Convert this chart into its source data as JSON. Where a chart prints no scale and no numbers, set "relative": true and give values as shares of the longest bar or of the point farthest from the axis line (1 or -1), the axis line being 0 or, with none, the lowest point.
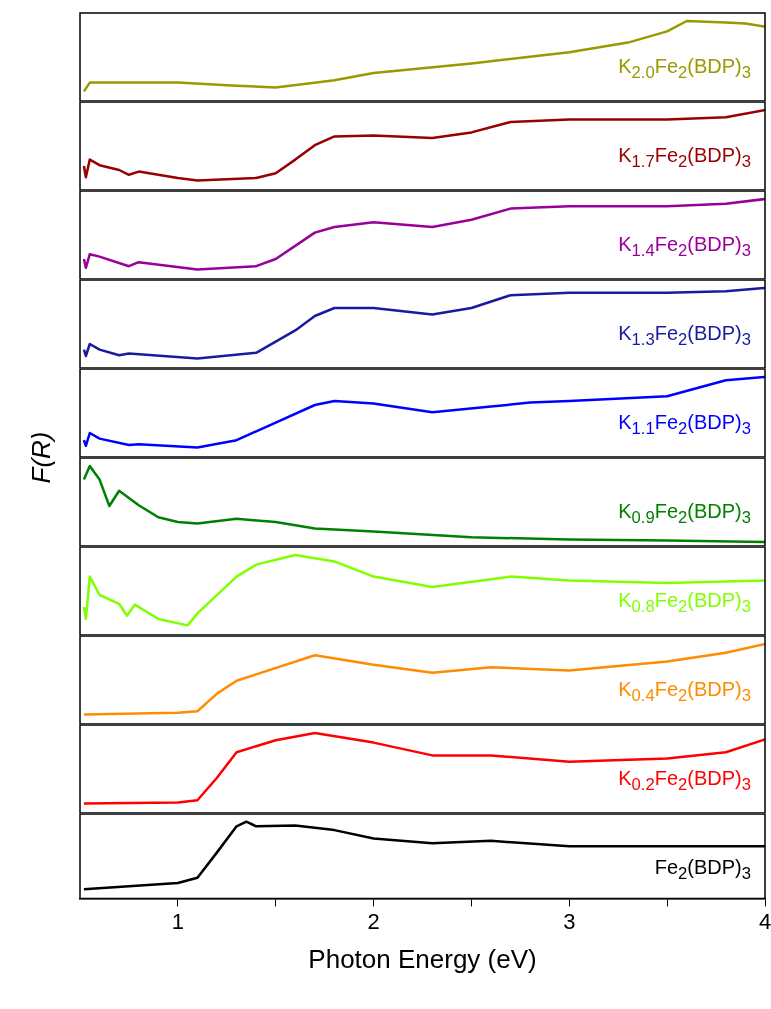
{
  "chart_data": [
    {
      "type": "line",
      "relative": true,
      "xlim": [
        0.5,
        4
      ],
      "tick_labels": false,
      "series": [
        {
          "name": "K$_{2.0}$Fe$_{2}$(BDP)$_{3}$",
          "color": "#999900",
          "x": [
            0.52,
            0.55,
            0.7,
            1.0,
            1.3,
            1.5,
            1.8,
            2.0,
            2.5,
            3.0,
            3.3,
            3.5,
            3.6,
            3.8,
            3.9,
            4.0
          ],
          "values": [
            0.12,
            0.23,
            0.23,
            0.23,
            0.19,
            0.17,
            0.26,
            0.35,
            0.47,
            0.61,
            0.73,
            0.87,
            1,
            0.98,
            0.97,
            0.93
          ]
        }
      ]
    },
    {
      "type": "line",
      "relative": true,
      "xlim": [
        0.5,
        4
      ],
      "tick_labels": false,
      "series": [
        {
          "name": "K$_{1.7}$Fe$_{2}$(BDP)$_{3}$",
          "color": "#990000",
          "x": [
            0.52,
            0.53,
            0.55,
            0.6,
            0.7,
            0.75,
            0.8,
            1.0,
            1.1,
            1.4,
            1.5,
            1.6,
            1.7,
            1.8,
            2.0,
            2.3,
            2.5,
            2.7,
            3.0,
            3.5,
            3.8,
            4.0
          ],
          "values": [
            0.3,
            0.16,
            0.38,
            0.31,
            0.25,
            0.19,
            0.23,
            0.15,
            0.12,
            0.15,
            0.21,
            0.38,
            0.56,
            0.67,
            0.68,
            0.65,
            0.72,
            0.85,
            0.88,
            0.88,
            0.91,
            1
          ]
        }
      ]
    },
    {
      "type": "line",
      "relative": true,
      "xlim": [
        0.5,
        4
      ],
      "tick_labels": false,
      "series": [
        {
          "name": "K$_{1.4}$Fe$_{2}$(BDP)$_{3}$",
          "color": "#990099",
          "x": [
            0.52,
            0.53,
            0.55,
            0.6,
            0.75,
            0.8,
            1.1,
            1.4,
            1.5,
            1.7,
            1.8,
            2.0,
            2.3,
            2.5,
            2.7,
            3.0,
            3.5,
            3.8,
            4.0
          ],
          "values": [
            0.25,
            0.14,
            0.31,
            0.28,
            0.16,
            0.21,
            0.12,
            0.16,
            0.25,
            0.58,
            0.65,
            0.71,
            0.65,
            0.74,
            0.88,
            0.91,
            0.91,
            0.94,
            1
          ]
        }
      ]
    },
    {
      "type": "line",
      "relative": true,
      "xlim": [
        0.5,
        4
      ],
      "tick_labels": false,
      "series": [
        {
          "name": "K$_{1.3}$Fe$_{2}$(BDP)$_{3}$",
          "color": "#1a1aa0",
          "x": [
            0.52,
            0.53,
            0.55,
            0.6,
            0.7,
            0.75,
            1.1,
            1.4,
            1.6,
            1.7,
            1.8,
            2.0,
            2.3,
            2.5,
            2.7,
            3.0,
            3.5,
            3.8,
            4.0
          ],
          "values": [
            0.23,
            0.15,
            0.3,
            0.23,
            0.16,
            0.18,
            0.12,
            0.19,
            0.47,
            0.65,
            0.75,
            0.75,
            0.67,
            0.75,
            0.91,
            0.94,
            0.94,
            0.96,
            1
          ]
        }
      ]
    },
    {
      "type": "line",
      "relative": true,
      "xlim": [
        0.5,
        4
      ],
      "tick_labels": false,
      "ylabel": "F(R)",
      "series": [
        {
          "name": "K$_{1.1}$Fe$_{2}$(BDP)$_{3}$",
          "color": "#0000ff",
          "x": [
            0.52,
            0.53,
            0.55,
            0.6,
            0.75,
            0.8,
            1.1,
            1.3,
            1.5,
            1.7,
            1.8,
            2.0,
            2.3,
            2.6,
            2.8,
            3.0,
            3.5,
            3.8,
            4.0
          ],
          "values": [
            0.21,
            0.14,
            0.3,
            0.23,
            0.15,
            0.16,
            0.12,
            0.21,
            0.43,
            0.65,
            0.7,
            0.67,
            0.56,
            0.63,
            0.68,
            0.7,
            0.76,
            0.96,
            1
          ]
        }
      ]
    },
    {
      "type": "line",
      "relative": true,
      "xlim": [
        0.5,
        4
      ],
      "tick_labels": false,
      "series": [
        {
          "name": "K$_{0.9}$Fe$_{2}$(BDP)$_{3}$",
          "color": "#008000",
          "x": [
            0.52,
            0.55,
            0.6,
            0.65,
            0.7,
            0.8,
            0.9,
            1.0,
            1.1,
            1.3,
            1.5,
            1.7,
            2.0,
            2.5,
            3.0,
            3.5,
            4.0
          ],
          "values": [
            0.83,
            1,
            0.83,
            0.5,
            0.69,
            0.51,
            0.36,
            0.3,
            0.28,
            0.34,
            0.3,
            0.22,
            0.18,
            0.11,
            0.08,
            0.07,
            0.05
          ]
        }
      ]
    },
    {
      "type": "line",
      "relative": true,
      "xlim": [
        0.5,
        4
      ],
      "tick_labels": false,
      "series": [
        {
          "name": "K$_{0.8}$Fe$_{2}$(BDP)$_{3}$",
          "color": "#80ff00",
          "x": [
            0.52,
            0.53,
            0.55,
            0.6,
            0.7,
            0.74,
            0.78,
            0.9,
            1.05,
            1.1,
            1.3,
            1.4,
            1.6,
            1.8,
            2.0,
            2.3,
            2.7,
            3.0,
            3.5,
            4.0
          ],
          "values": [
            0.35,
            0.2,
            0.73,
            0.5,
            0.39,
            0.24,
            0.38,
            0.2,
            0.12,
            0.27,
            0.73,
            0.88,
            1,
            0.92,
            0.73,
            0.6,
            0.73,
            0.68,
            0.65,
            0.68
          ]
        }
      ]
    },
    {
      "type": "line",
      "relative": true,
      "xlim": [
        0.5,
        4
      ],
      "tick_labels": false,
      "series": [
        {
          "name": "K$_{0.4}$Fe$_{2}$(BDP)$_{3}$",
          "color": "#ff8c00",
          "x": [
            0.52,
            1.0,
            1.1,
            1.2,
            1.3,
            1.4,
            1.7,
            2.0,
            2.3,
            2.6,
            3.0,
            3.5,
            3.8,
            4.0
          ],
          "values": [
            0.12,
            0.14,
            0.16,
            0.38,
            0.54,
            0.62,
            0.86,
            0.74,
            0.64,
            0.71,
            0.67,
            0.78,
            0.89,
            1
          ]
        }
      ]
    },
    {
      "type": "line",
      "relative": true,
      "xlim": [
        0.5,
        4
      ],
      "tick_labels": false,
      "series": [
        {
          "name": "K$_{0.2}$Fe$_{2}$(BDP)$_{3}$",
          "color": "#ff0000",
          "x": [
            0.52,
            1.0,
            1.1,
            1.2,
            1.3,
            1.5,
            1.7,
            2.0,
            2.3,
            2.6,
            3.0,
            3.5,
            3.8,
            4.0
          ],
          "values": [
            0.12,
            0.13,
            0.16,
            0.44,
            0.76,
            0.91,
            1,
            0.88,
            0.72,
            0.72,
            0.64,
            0.68,
            0.76,
            0.92
          ]
        }
      ]
    },
    {
      "type": "line",
      "relative": true,
      "xlim": [
        0.5,
        4
      ],
      "xticks": [
        1,
        {
          "value": 1.5,
          "label": null
        },
        2,
        {
          "value": 2.5,
          "label": null
        },
        3,
        {
          "value": 3.5,
          "label": null
        },
        4
      ],
      "tick_labels": "x",
      "xlabel": "Photon Energy (eV)",
      "series": [
        {
          "name": "Fe$_{2}$(BDP)$_{3}$",
          "color": "#000000",
          "x": [
            0.52,
            1.0,
            1.1,
            1.2,
            1.3,
            1.35,
            1.4,
            1.6,
            1.8,
            2.0,
            2.3,
            2.6,
            3.0,
            3.5,
            4.0
          ],
          "values": [
            0.12,
            0.2,
            0.27,
            0.6,
            0.94,
            1,
            0.94,
            0.95,
            0.89,
            0.78,
            0.72,
            0.75,
            0.68,
            0.68,
            0.68
          ]
        }
      ]
    }
  ]
}
